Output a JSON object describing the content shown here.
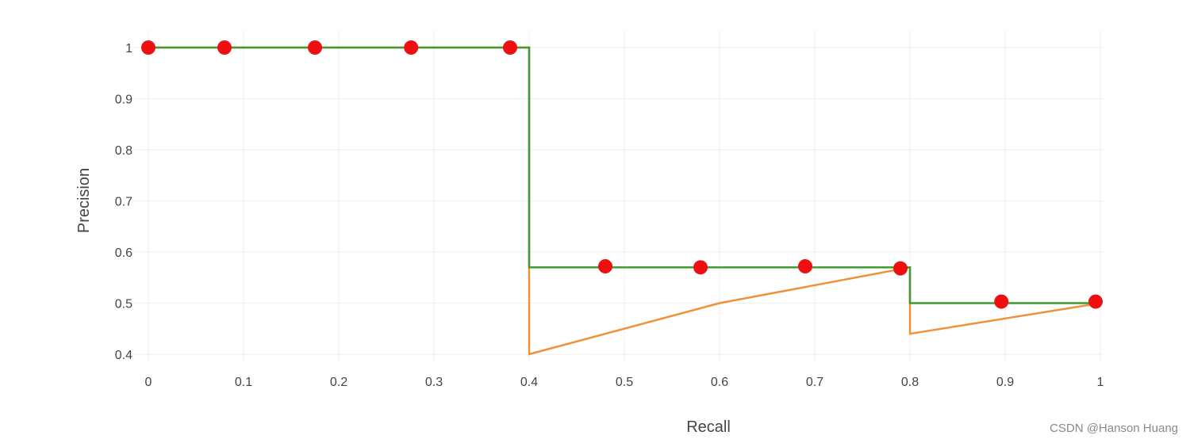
{
  "chart_data": {
    "type": "line",
    "title": "",
    "xlabel": "Recall",
    "ylabel": "Precision",
    "xlim": [
      0,
      1
    ],
    "ylim": [
      0.4,
      1
    ],
    "grid": true,
    "x_ticks": [
      "0",
      "0.1",
      "0.2",
      "0.3",
      "0.4",
      "0.5",
      "0.6",
      "0.7",
      "0.8",
      "0.9",
      "1"
    ],
    "y_ticks": [
      "0.4",
      "0.5",
      "0.6",
      "0.7",
      "0.8",
      "0.9",
      "1"
    ],
    "x_tick_values": [
      0,
      0.1,
      0.2,
      0.3,
      0.4,
      0.5,
      0.6,
      0.7,
      0.8,
      0.9,
      1
    ],
    "y_tick_values": [
      0.4,
      0.5,
      0.6,
      0.7,
      0.8,
      0.9,
      1
    ],
    "series": [
      {
        "color": "#f0913a",
        "style": "line",
        "x": [
          0,
          0.4,
          0.4,
          0.6,
          0.8,
          0.8,
          1
        ],
        "y": [
          1,
          1,
          0.4,
          0.5,
          0.57,
          0.44,
          0.5
        ]
      },
      {
        "color": "#3e9b32",
        "style": "line",
        "x": [
          0,
          0.4,
          0.4,
          0.8,
          0.8,
          1
        ],
        "y": [
          1,
          1,
          0.57,
          0.57,
          0.5,
          0.5
        ]
      },
      {
        "color": "#ee1010",
        "style": "markers",
        "x": [
          0,
          0.08,
          0.175,
          0.276,
          0.38,
          0.48,
          0.58,
          0.69,
          0.79,
          0.896,
          0.995
        ],
        "y": [
          1,
          1,
          1,
          1,
          1,
          0.572,
          0.57,
          0.572,
          0.568,
          0.503,
          0.503
        ]
      }
    ]
  },
  "watermark": "CSDN @Hanson Huang"
}
